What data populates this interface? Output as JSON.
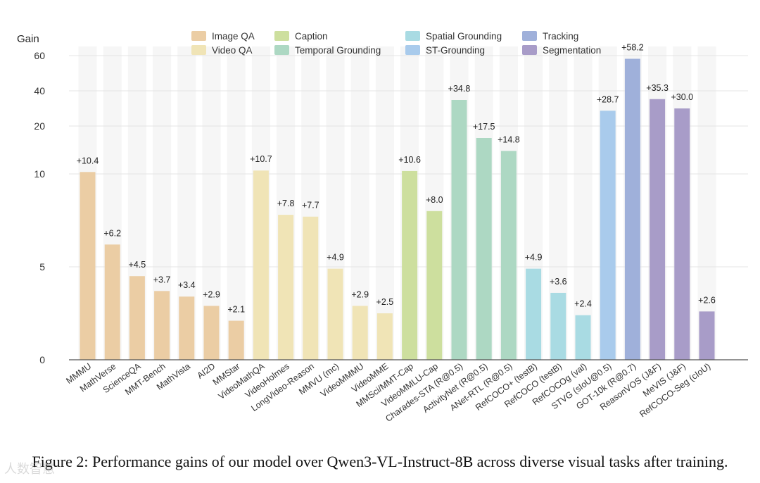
{
  "figure_caption": "Figure 2: Performance gains of our model over Qwen3-VL-Instruct-8B across diverse visual tasks after training.",
  "watermark": "人数智慧",
  "chart_data": {
    "type": "bar",
    "ylabel": "Gain",
    "xlabel": "",
    "ylim": [
      0,
      60
    ],
    "y_scale": "piecewise (0, 5, 10, 20, 40, 60 ticks)",
    "yticks": [
      0,
      5,
      10,
      20,
      40,
      60
    ],
    "grid": true,
    "legend_position": "top",
    "legend": [
      {
        "name": "Image QA",
        "color": "#ebcda4"
      },
      {
        "name": "Video QA",
        "color": "#f0e4b6"
      },
      {
        "name": "Caption",
        "color": "#cddf9e"
      },
      {
        "name": "Temporal Grounding",
        "color": "#add8c3"
      },
      {
        "name": "Spatial Grounding",
        "color": "#a9dbe3"
      },
      {
        "name": "ST-Grounding",
        "color": "#a9cbec"
      },
      {
        "name": "Tracking",
        "color": "#9fb0da"
      },
      {
        "name": "Segmentation",
        "color": "#a89cc8"
      }
    ],
    "bars": [
      {
        "label": "MMMU",
        "value": 10.4,
        "value_label": "+10.4",
        "group": "Image QA"
      },
      {
        "label": "MathVerse",
        "value": 6.2,
        "value_label": "+6.2",
        "group": "Image QA"
      },
      {
        "label": "ScienceQA",
        "value": 4.5,
        "value_label": "+4.5",
        "group": "Image QA"
      },
      {
        "label": "MMT-Bench",
        "value": 3.7,
        "value_label": "+3.7",
        "group": "Image QA"
      },
      {
        "label": "MathVista",
        "value": 3.4,
        "value_label": "+3.4",
        "group": "Image QA"
      },
      {
        "label": "AI2D",
        "value": 2.9,
        "value_label": "+2.9",
        "group": "Image QA"
      },
      {
        "label": "MMStar",
        "value": 2.1,
        "value_label": "+2.1",
        "group": "Image QA"
      },
      {
        "label": "VideoMathQA",
        "value": 10.7,
        "value_label": "+10.7",
        "group": "Video QA"
      },
      {
        "label": "VideoHolmes",
        "value": 7.8,
        "value_label": "+7.8",
        "group": "Video QA"
      },
      {
        "label": "LongVideo-Reason",
        "value": 7.7,
        "value_label": "+7.7",
        "group": "Video QA"
      },
      {
        "label": "MMVU (mc)",
        "value": 4.9,
        "value_label": "+4.9",
        "group": "Video QA"
      },
      {
        "label": "VideoMMMU",
        "value": 2.9,
        "value_label": "+2.9",
        "group": "Video QA"
      },
      {
        "label": "VideoMME",
        "value": 2.5,
        "value_label": "+2.5",
        "group": "Video QA"
      },
      {
        "label": "MMSci/MMT-Cap",
        "value": 10.6,
        "value_label": "+10.6",
        "group": "Caption"
      },
      {
        "label": "VideoMMLU-Cap",
        "value": 8.0,
        "value_label": "+8.0",
        "group": "Caption"
      },
      {
        "label": "Charades-STA (R@0.5)",
        "value": 34.8,
        "value_label": "+34.8",
        "group": "Temporal Grounding"
      },
      {
        "label": "ActivityNet (R@0.5)",
        "value": 17.5,
        "value_label": "+17.5",
        "group": "Temporal Grounding"
      },
      {
        "label": "ANet-RTL (R@0.5)",
        "value": 14.8,
        "value_label": "+14.8",
        "group": "Temporal Grounding"
      },
      {
        "label": "RefCOCO+ (testB)",
        "value": 4.9,
        "value_label": "+4.9",
        "group": "Spatial Grounding"
      },
      {
        "label": "RefCOCO (testB)",
        "value": 3.6,
        "value_label": "+3.6",
        "group": "Spatial Grounding"
      },
      {
        "label": "RefCOCOg (val)",
        "value": 2.4,
        "value_label": "+2.4",
        "group": "Spatial Grounding"
      },
      {
        "label": "STVG (sIoU@0.5)",
        "value": 28.7,
        "value_label": "+28.7",
        "group": "ST-Grounding"
      },
      {
        "label": "GOT-10k (R@0.7)",
        "value": 58.2,
        "value_label": "+58.2",
        "group": "Tracking"
      },
      {
        "label": "ReasonVOS (J&F)",
        "value": 35.3,
        "value_label": "+35.3",
        "group": "Segmentation"
      },
      {
        "label": "MeVIS (J&F)",
        "value": 30.0,
        "value_label": "+30.0",
        "group": "Segmentation"
      },
      {
        "label": "RefCOCO-Seg (cIoU)",
        "value": 2.6,
        "value_label": "+2.6",
        "group": "Segmentation"
      }
    ]
  }
}
